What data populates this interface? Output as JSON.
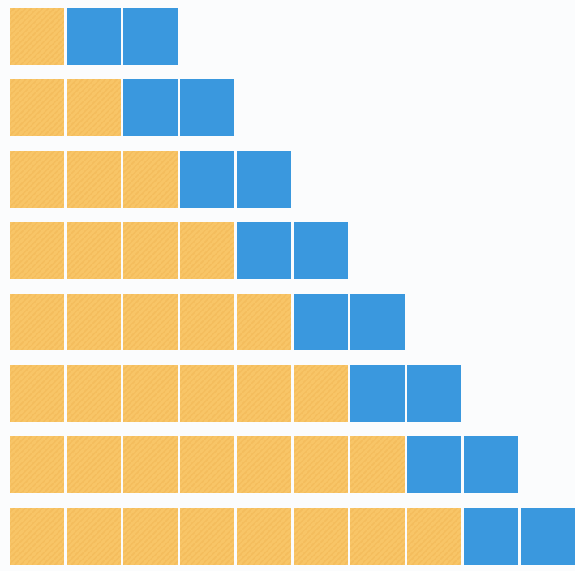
{
  "colors": {
    "orange": "#f8c567",
    "blue": "#3a98de",
    "background": "#fbfcfd"
  },
  "rows": [
    {
      "orange": 1,
      "blue": 2
    },
    {
      "orange": 2,
      "blue": 2
    },
    {
      "orange": 3,
      "blue": 2
    },
    {
      "orange": 4,
      "blue": 2
    },
    {
      "orange": 5,
      "blue": 2
    },
    {
      "orange": 6,
      "blue": 2
    },
    {
      "orange": 7,
      "blue": 2
    },
    {
      "orange": 8,
      "blue": 2
    }
  ]
}
